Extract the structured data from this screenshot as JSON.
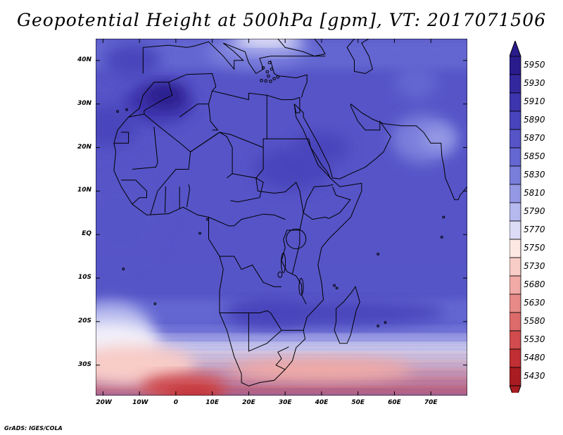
{
  "title": "Geopotential Height at 500hPa [gpm], VT: 2017071506",
  "credit": "GrADS: IGES/COLA",
  "map": {
    "lon_range": [
      -22,
      80
    ],
    "lat_range": [
      -37,
      45
    ],
    "lon_ticks": [
      {
        "lon": -20,
        "label": "20W"
      },
      {
        "lon": -10,
        "label": "10W"
      },
      {
        "lon": 0,
        "label": "0"
      },
      {
        "lon": 10,
        "label": "10E"
      },
      {
        "lon": 20,
        "label": "20E"
      },
      {
        "lon": 30,
        "label": "30E"
      },
      {
        "lon": 40,
        "label": "40E"
      },
      {
        "lon": 50,
        "label": "50E"
      },
      {
        "lon": 60,
        "label": "60E"
      },
      {
        "lon": 70,
        "label": "70E"
      }
    ],
    "lat_ticks": [
      {
        "lat": 40,
        "label": "40N"
      },
      {
        "lat": 30,
        "label": "30N"
      },
      {
        "lat": 20,
        "label": "20N"
      },
      {
        "lat": 10,
        "label": "10N"
      },
      {
        "lat": 0,
        "label": "EQ"
      },
      {
        "lat": -10,
        "label": "10S"
      },
      {
        "lat": -20,
        "label": "20S"
      },
      {
        "lat": -30,
        "label": "30S"
      }
    ]
  },
  "colorbar": {
    "labels": [
      "5950",
      "5930",
      "5910",
      "5890",
      "5870",
      "5850",
      "5830",
      "5810",
      "5790",
      "5770",
      "5750",
      "5730",
      "5680",
      "5630",
      "5580",
      "5530",
      "5480",
      "5430"
    ],
    "colors": [
      "#2a1b8c",
      "#33289e",
      "#3d35ad",
      "#4844bb",
      "#5654c7",
      "#6466d1",
      "#7a7edb",
      "#9599e4",
      "#b6b9ee",
      "#dcdcf6",
      "#fde8e4",
      "#f8ccc7",
      "#f1aaa6",
      "#e88a88",
      "#dd6b6b",
      "#d04c4e",
      "#c02f33",
      "#a81c22"
    ]
  },
  "field_colors": {
    "deep": "#2a1b8c",
    "strong": "#3d35ad",
    "mid": "#4844bb",
    "base": "#5654c7",
    "light": "#6466d1",
    "lighter": "#7a7edb",
    "pale": "#9599e4",
    "paler": "#b6b9ee",
    "white": "#f2f0fa",
    "pink1": "#fde8e4",
    "pink2": "#f8ccc7",
    "pink3": "#f1aaa6",
    "pink4": "#e88a88",
    "red1": "#dd6b6b",
    "red2": "#d04c4e",
    "red3": "#c02f33"
  }
}
